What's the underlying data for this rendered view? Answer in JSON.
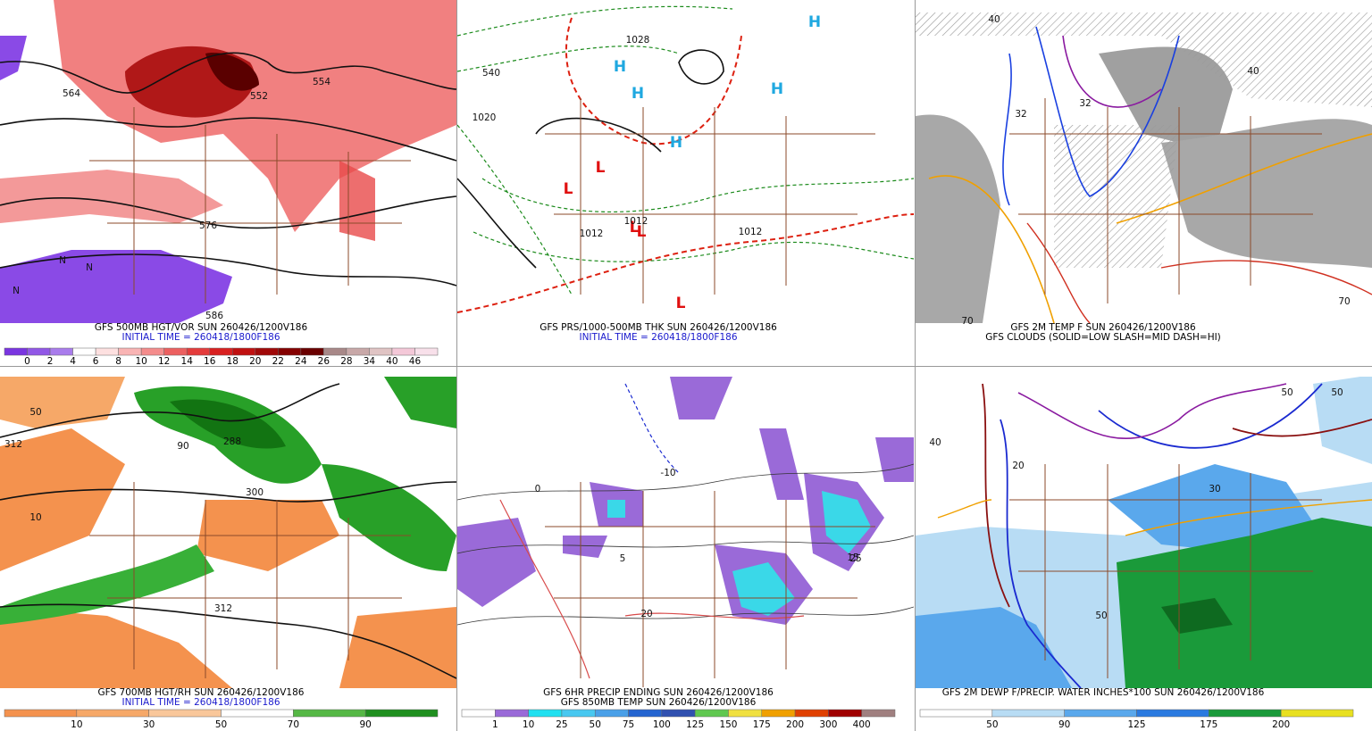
{
  "panels": [
    {
      "caption": [
        "GFS 500MB HGT/VOR SUN 260426/1200V186",
        "INITIAL TIME = 260418/1800F186"
      ],
      "colorbar": {
        "colors": [
          "#7a35e0",
          "#9157e6",
          "#a97cec",
          "#ffffff",
          "#fde0e0",
          "#f9b4b4",
          "#f48c8c",
          "#ec6060",
          "#e43c3c",
          "#d82020",
          "#c01010",
          "#a00808",
          "#840000",
          "#6a0000",
          "#a88888",
          "#c8a8a8",
          "#e0c4c4",
          "#f4c8d8",
          "#f8e0ea"
        ],
        "labels": [
          "0",
          "2",
          "4",
          "6",
          "8",
          "10",
          "12",
          "14",
          "16",
          "18",
          "20",
          "22",
          "24",
          "26",
          "28",
          "34",
          "40",
          "46"
        ]
      },
      "map_labels": [
        "564",
        "552",
        "576",
        "586",
        "554",
        "N",
        "N",
        "N"
      ]
    },
    {
      "caption": [
        "GFS PRS/1000-500MB THK SUN 260426/1200V186",
        "INITIAL TIME = 260418/1800F186"
      ],
      "map_labels": [
        "H",
        "H",
        "H",
        "H",
        "H",
        "L",
        "L",
        "L",
        "L",
        "L",
        "1020",
        "1028",
        "1012",
        "1012",
        "540",
        "1012"
      ]
    },
    {
      "caption": [
        "GFS 2M TEMP F SUN 260426/1200V186",
        "GFS CLOUDS (SOLID=LOW SLASH=MID DASH=HI)"
      ],
      "map_labels": [
        "40",
        "32",
        "32",
        "40",
        "70",
        "70"
      ]
    },
    {
      "caption": [
        "GFS 700MB HGT/RH SUN 260426/1200V186",
        "INITIAL TIME = 260418/1800F186"
      ],
      "colorbar": {
        "colors": [
          "#f4924e",
          "#f6a868",
          "#f9c79a",
          "#ffffff",
          "#55b845",
          "#1f8f1f"
        ],
        "labels": [
          "10",
          "30",
          "50",
          "70",
          "90"
        ]
      },
      "map_labels": [
        "312",
        "288",
        "300",
        "50",
        "90",
        "10",
        "312"
      ]
    },
    {
      "caption": [
        "GFS 6HR PRECIP ENDING SUN 260426/1200V186",
        "GFS 850MB TEMP SUN 260426/1200V186"
      ],
      "colorbar": {
        "colors": [
          "#ffffff",
          "#9a6ad8",
          "#20e0f0",
          "#48c8f0",
          "#4aa0e8",
          "#2464d0",
          "#3050b0",
          "#60c850",
          "#f0e040",
          "#f0a000",
          "#e04000",
          "#a00000",
          "#a08080"
        ],
        "labels": [
          "1",
          "10",
          "25",
          "50",
          "75",
          "100",
          "125",
          "150",
          "175",
          "200",
          "300",
          "400"
        ]
      },
      "map_labels": [
        "-10",
        "0",
        "5",
        "20",
        "15",
        "25"
      ]
    },
    {
      "caption": [
        "GFS 2M DEWP F/PRECIP. WATER INCHES*100 SUN 260426/1200V186"
      ],
      "colorbar": {
        "colors": [
          "#ffffff",
          "#b8dcf4",
          "#5aa8ec",
          "#2a7ae0",
          "#1a9a3a",
          "#e8e020"
        ],
        "labels": [
          "50",
          "90",
          "125",
          "175",
          "200"
        ]
      },
      "map_labels": [
        "50",
        "50",
        "20",
        "30",
        "40",
        "50"
      ]
    }
  ]
}
